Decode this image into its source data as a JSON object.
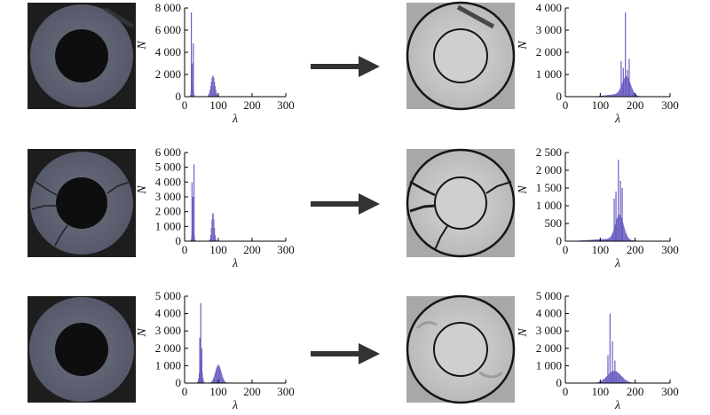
{
  "colors": {
    "bar": "#6a5fc1",
    "arrow": "#333333",
    "axis": "#000000"
  },
  "chart_data": [
    {
      "type": "bar",
      "panel": "original-1",
      "xlabel": "λ",
      "ylabel": "N",
      "xlim": [
        0,
        300
      ],
      "ylim": [
        0,
        8000
      ],
      "xticks": [
        0,
        100,
        200,
        300
      ],
      "xtick_labels": [
        "0",
        "100",
        "200",
        "300"
      ],
      "yticks": [
        0,
        2000,
        4000,
        6000,
        8000
      ],
      "ytick_labels": [
        "0",
        "2 000",
        "4 000",
        "6 000",
        "8 000"
      ],
      "spikes": [
        [
          20,
          7600
        ],
        [
          26,
          4800
        ],
        [
          23,
          3000
        ]
      ],
      "peaks": [
        {
          "center": 84,
          "width": 6,
          "height": 1900
        },
        {
          "center": 23,
          "width": 3,
          "height": 1200
        }
      ]
    },
    {
      "type": "bar",
      "panel": "enhanced-1",
      "xlabel": "λ",
      "ylabel": "N",
      "xlim": [
        0,
        300
      ],
      "ylim": [
        0,
        4000
      ],
      "xticks": [
        0,
        100,
        200,
        300
      ],
      "xtick_labels": [
        "0",
        "100",
        "200",
        "300"
      ],
      "yticks": [
        0,
        1000,
        2000,
        3000,
        4000
      ],
      "ytick_labels": [
        "0",
        "1 000",
        "2 000",
        "3 000",
        "4 000"
      ],
      "spikes": [
        [
          172,
          3800
        ],
        [
          160,
          1600
        ],
        [
          183,
          1700
        ],
        [
          166,
          1300
        ],
        [
          178,
          1200
        ]
      ],
      "peaks": [
        {
          "center": 175,
          "width": 12,
          "height": 850
        },
        {
          "center": 150,
          "width": 35,
          "height": 100
        }
      ]
    },
    {
      "type": "bar",
      "panel": "original-2",
      "xlabel": "λ",
      "ylabel": "N",
      "xlim": [
        0,
        300
      ],
      "ylim": [
        0,
        6000
      ],
      "xticks": [
        0,
        100,
        200,
        300
      ],
      "xtick_labels": [
        "0",
        "100",
        "200",
        "300"
      ],
      "yticks": [
        0,
        1000,
        2000,
        3000,
        4000,
        5000,
        6000
      ],
      "ytick_labels": [
        "0",
        "1 000",
        "2 000",
        "3 000",
        "4 000",
        "5 000",
        "6 000"
      ],
      "spikes": [
        [
          28,
          5200
        ],
        [
          22,
          4000
        ],
        [
          25,
          3000
        ]
      ],
      "peaks": [
        {
          "center": 84,
          "width": 4,
          "height": 1950
        },
        {
          "center": 25,
          "width": 3,
          "height": 1000
        }
      ]
    },
    {
      "type": "bar",
      "panel": "enhanced-2",
      "xlabel": "λ",
      "ylabel": "N",
      "xlim": [
        0,
        300
      ],
      "ylim": [
        0,
        2500
      ],
      "xticks": [
        0,
        100,
        200,
        300
      ],
      "xtick_labels": [
        "0",
        "100",
        "200",
        "300"
      ],
      "yticks": [
        0,
        500,
        1000,
        1500,
        2000,
        2500
      ],
      "ytick_labels": [
        "0",
        "500",
        "1 000",
        "1 500",
        "2 000",
        "2 500"
      ],
      "spikes": [
        [
          152,
          2300
        ],
        [
          145,
          1400
        ],
        [
          158,
          1700
        ],
        [
          140,
          1200
        ],
        [
          163,
          1500
        ]
      ],
      "peaks": [
        {
          "center": 155,
          "width": 12,
          "height": 700
        },
        {
          "center": 120,
          "width": 50,
          "height": 60
        }
      ]
    },
    {
      "type": "bar",
      "panel": "original-3",
      "xlabel": "λ",
      "ylabel": "N",
      "xlim": [
        0,
        300
      ],
      "ylim": [
        0,
        5000
      ],
      "xticks": [
        0,
        100,
        200,
        300
      ],
      "xtick_labels": [
        "0",
        "100",
        "200",
        "300"
      ],
      "yticks": [
        0,
        1000,
        2000,
        3000,
        4000,
        5000
      ],
      "ytick_labels": [
        "0",
        "1 000",
        "2 000",
        "3 000",
        "4 000",
        "5 000"
      ],
      "spikes": [
        [
          48,
          4600
        ],
        [
          45,
          2600
        ],
        [
          51,
          2000
        ]
      ],
      "peaks": [
        {
          "center": 100,
          "width": 9,
          "height": 1050
        },
        {
          "center": 48,
          "width": 4,
          "height": 1300
        }
      ]
    },
    {
      "type": "bar",
      "panel": "enhanced-3",
      "xlabel": "λ",
      "ylabel": "N",
      "xlim": [
        0,
        300
      ],
      "ylim": [
        0,
        5000
      ],
      "xticks": [
        0,
        100,
        200,
        300
      ],
      "xtick_labels": [
        "0",
        "100",
        "200",
        "300"
      ],
      "yticks": [
        0,
        1000,
        2000,
        3000,
        4000,
        5000
      ],
      "ytick_labels": [
        "0",
        "1 000",
        "2 000",
        "3 000",
        "4 000",
        "5 000"
      ],
      "spikes": [
        [
          128,
          4000
        ],
        [
          135,
          2400
        ],
        [
          122,
          1600
        ],
        [
          142,
          1300
        ]
      ],
      "peaks": [
        {
          "center": 140,
          "width": 20,
          "height": 700
        }
      ]
    }
  ]
}
